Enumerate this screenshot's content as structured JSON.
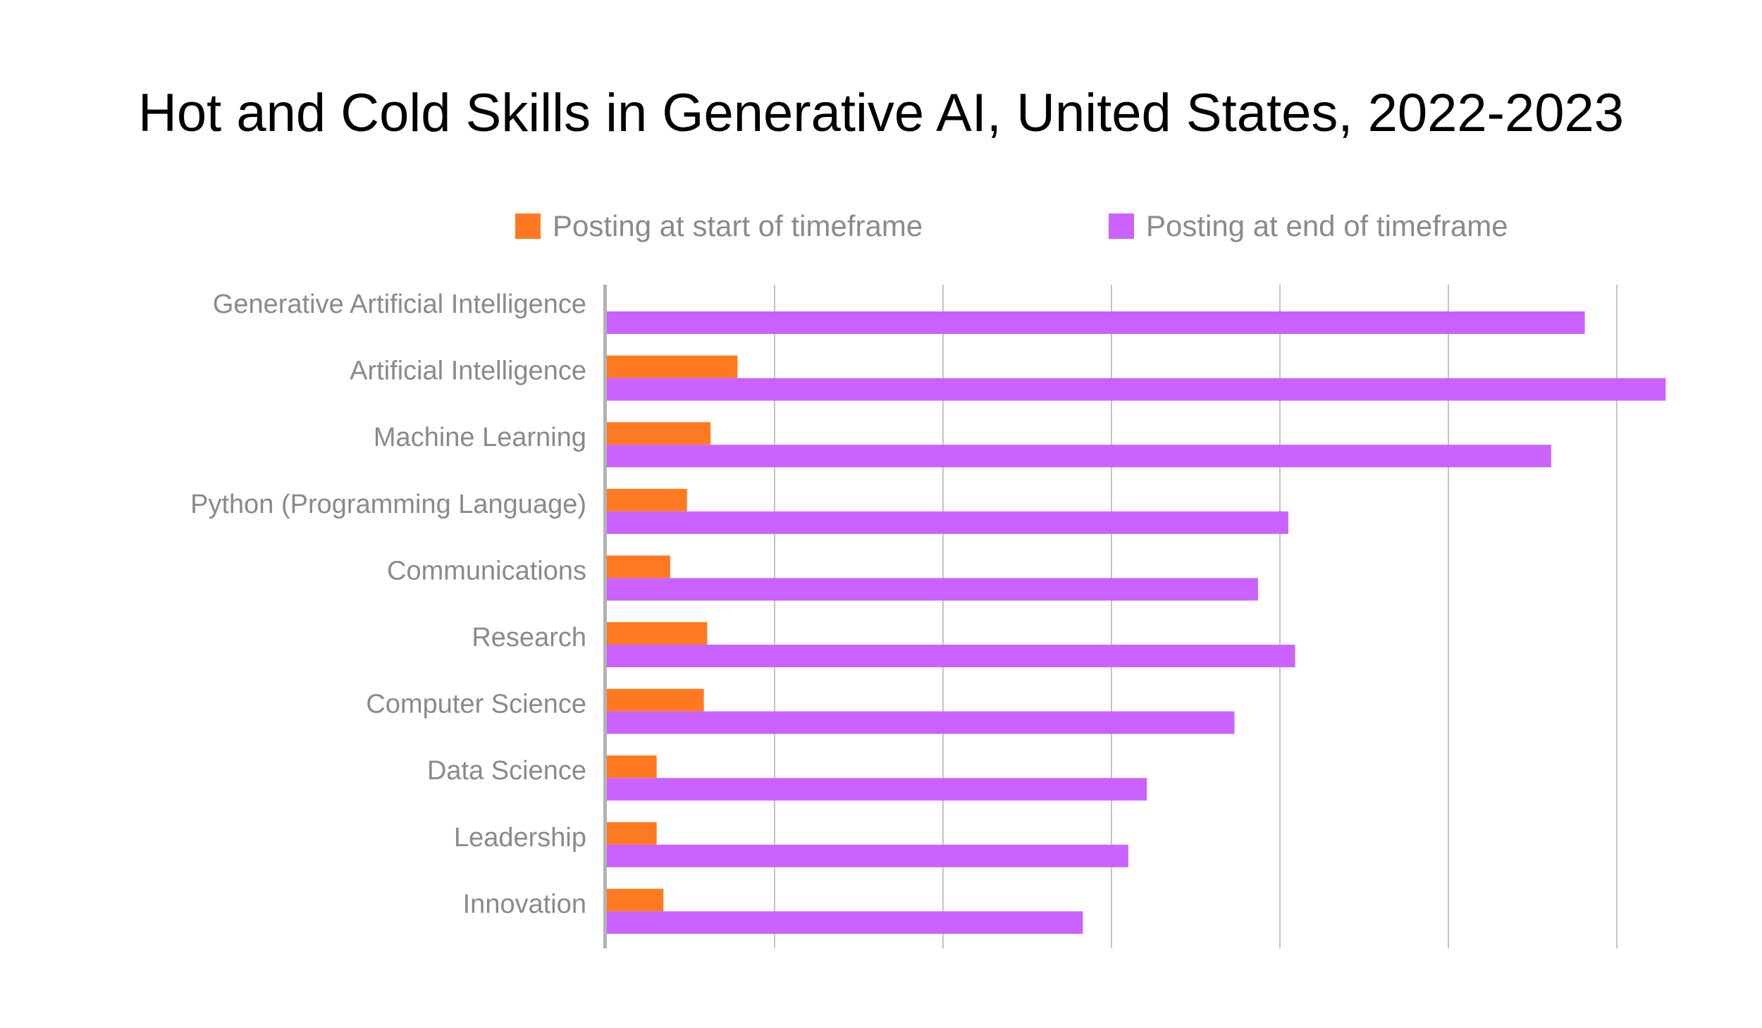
{
  "chart_data": {
    "type": "bar",
    "orientation": "horizontal",
    "title": "Hot and Cold Skills in Generative AI, United States, 2022-2023",
    "xlabel": "",
    "ylabel": "",
    "xlim": [
      0,
      6.3
    ],
    "grid": true,
    "legend_position": "top",
    "categories": [
      "Generative Artificial Intelligence",
      "Artificial Intelligence",
      "Machine Learning",
      "Python (Programming Language)",
      "Communications",
      "Research",
      "Computer Science",
      "Data Science",
      "Leadership",
      "Innovation"
    ],
    "series": [
      {
        "name": "Posting at start of timeframe",
        "color": "#FF7920",
        "values": [
          0,
          0.78,
          0.62,
          0.48,
          0.38,
          0.6,
          0.58,
          0.3,
          0.3,
          0.34
        ]
      },
      {
        "name": "Posting at end of timeframe",
        "color": "#CA62FF",
        "values": [
          5.81,
          6.29,
          5.61,
          4.05,
          3.87,
          4.09,
          3.73,
          3.21,
          3.1,
          2.83
        ]
      }
    ]
  }
}
